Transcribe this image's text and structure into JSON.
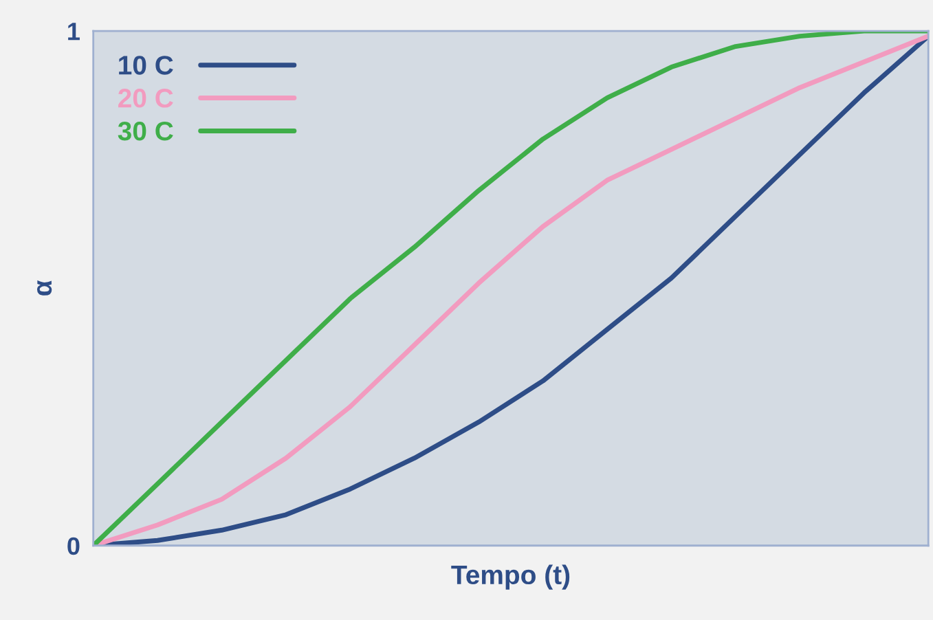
{
  "chart_data": {
    "type": "line",
    "xlabel": "Tempo (t)",
    "ylabel": "α",
    "categories": [
      null,
      null,
      null,
      null,
      null,
      null,
      null,
      null,
      null,
      null,
      null,
      null,
      null,
      null
    ],
    "series": [
      {
        "name": "10 C",
        "color": "#2e4d87",
        "values": [
          0,
          0.01,
          0.03,
          0.06,
          0.11,
          0.17,
          0.24,
          0.32,
          0.42,
          0.52,
          0.64,
          0.76,
          0.88,
          0.99
        ]
      },
      {
        "name": "20 C",
        "color": "#f29bbf",
        "values": [
          0,
          0.04,
          0.09,
          0.17,
          0.27,
          0.39,
          0.51,
          0.62,
          0.71,
          0.77,
          0.83,
          0.89,
          0.94,
          0.99
        ]
      },
      {
        "name": "30 C",
        "color": "#3fae49",
        "values": [
          0,
          0.12,
          0.24,
          0.36,
          0.48,
          0.58,
          0.69,
          0.79,
          0.87,
          0.93,
          0.97,
          0.99,
          1.0,
          1.0
        ]
      }
    ],
    "ylim": [
      0,
      1
    ],
    "yticks": [
      0,
      1
    ],
    "tick_labels": "y",
    "grid": false,
    "legend": "top left",
    "marker": "none",
    "line_style": "solid"
  }
}
